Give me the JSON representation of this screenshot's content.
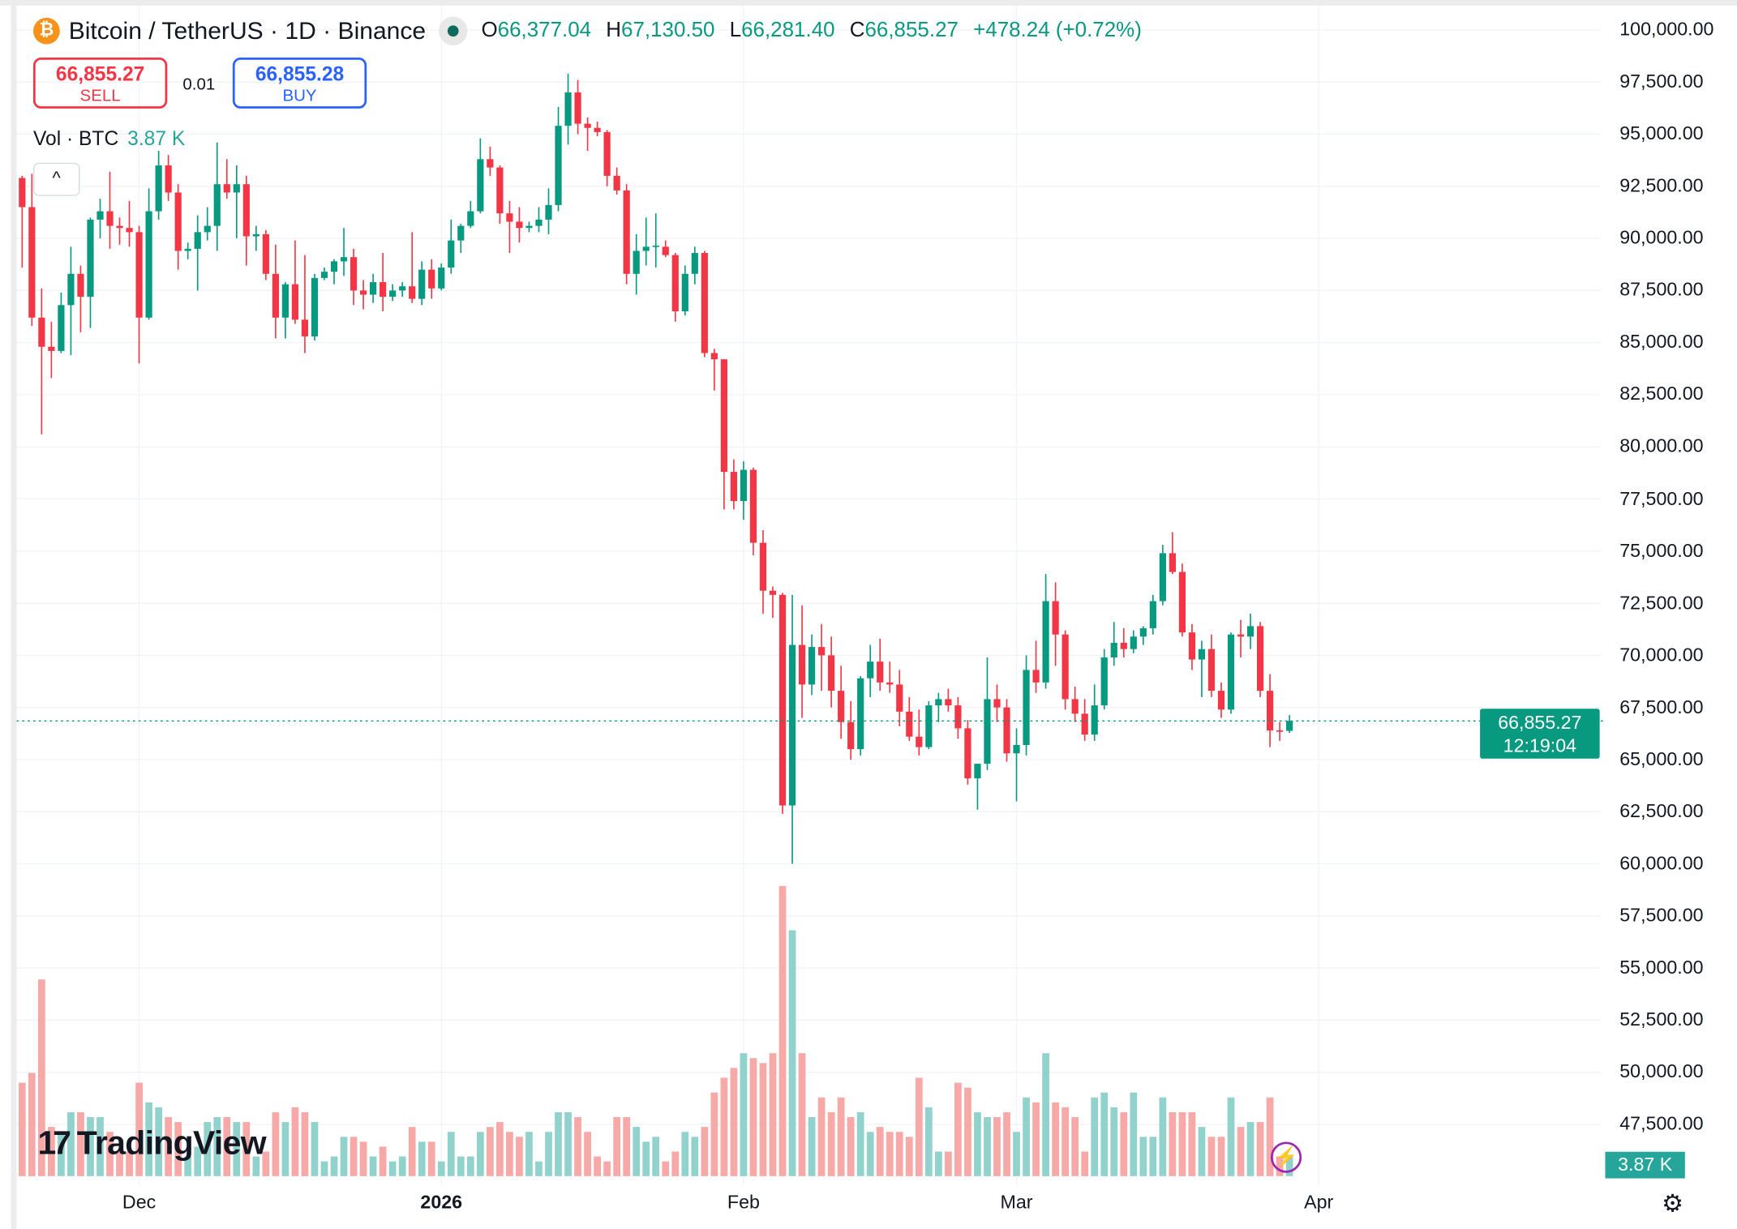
{
  "header": {
    "symbol_icon": "bitcoin-icon",
    "title": "Bitcoin / TetherUS · 1D · Binance",
    "market_status": "open",
    "open_label": "O",
    "open": "66,377.04",
    "high_label": "H",
    "high": "67,130.50",
    "low_label": "L",
    "low": "66,281.40",
    "close_label": "C",
    "close": "66,855.27",
    "change": "+478.24 (+0.72%)"
  },
  "trade": {
    "sell_price": "66,855.27",
    "sell_label": "SELL",
    "spread": "0.01",
    "buy_price": "66,855.28",
    "buy_label": "BUY"
  },
  "volume_legend": {
    "label": "Vol · BTC",
    "value": "3.87 K"
  },
  "collapse_icon": "chevron-up-icon",
  "collapse_glyph": "^",
  "price_axis": [
    "100,000.00",
    "97,500.00",
    "95,000.00",
    "92,500.00",
    "90,000.00",
    "87,500.00",
    "85,000.00",
    "82,500.00",
    "80,000.00",
    "77,500.00",
    "75,000.00",
    "72,500.00",
    "70,000.00",
    "67,500.00",
    "65,000.00",
    "62,500.00",
    "60,000.00",
    "57,500.00",
    "55,000.00",
    "52,500.00",
    "50,000.00",
    "47,500.00"
  ],
  "current_price": {
    "price": "66,855.27",
    "countdown": "12:19:04"
  },
  "current_volume": "3.87 K",
  "time_axis": [
    {
      "label": "Dec",
      "date": "2025-12-01",
      "bold": false
    },
    {
      "label": "2026",
      "date": "2026-01-01",
      "bold": true
    },
    {
      "label": "Feb",
      "date": "2026-02-01",
      "bold": false
    },
    {
      "label": "Mar",
      "date": "2026-03-01",
      "bold": false
    },
    {
      "label": "Apr",
      "date": "2026-04-01",
      "bold": false
    }
  ],
  "brand": "TradingView",
  "colors": {
    "up": "#089981",
    "down": "#f23645",
    "up_volume": "#92d2cc",
    "down_volume": "#f7a9a7",
    "sell": "#f23645",
    "buy": "#2962ff",
    "bitcoin": "#f7931a"
  },
  "icons": {
    "bolt": "lightning-icon",
    "settings": "settings-icon"
  },
  "chart_data": {
    "type": "candlestick",
    "title": "Bitcoin / TetherUS · 1D · Binance",
    "ylim": [
      45000,
      100000
    ],
    "price_unit": "USDT",
    "volume_unit": "K BTC",
    "grid": true,
    "columns": [
      "date",
      "open",
      "high",
      "low",
      "close",
      "volume"
    ],
    "candles": [
      [
        "2025-11-19",
        92900,
        93000,
        88600,
        91500,
        19
      ],
      [
        "2025-11-20",
        91500,
        93100,
        85800,
        86200,
        21
      ],
      [
        "2025-11-21",
        86200,
        87600,
        80600,
        84800,
        40
      ],
      [
        "2025-11-22",
        84800,
        86000,
        83300,
        84600,
        10
      ],
      [
        "2025-11-23",
        84600,
        87400,
        84500,
        86800,
        9
      ],
      [
        "2025-11-24",
        86800,
        89600,
        84400,
        88300,
        13
      ],
      [
        "2025-11-25",
        88300,
        88700,
        85500,
        87200,
        13
      ],
      [
        "2025-11-26",
        87200,
        91000,
        85700,
        90900,
        12
      ],
      [
        "2025-11-27",
        90900,
        91900,
        90000,
        91300,
        12
      ],
      [
        "2025-11-28",
        91300,
        93200,
        89500,
        90600,
        9
      ],
      [
        "2025-11-29",
        90600,
        91000,
        89700,
        90500,
        5
      ],
      [
        "2025-11-30",
        90500,
        91800,
        89600,
        90300,
        5
      ],
      [
        "2025-12-01",
        90300,
        90600,
        84000,
        86200,
        19
      ],
      [
        "2025-12-02",
        86200,
        92400,
        86100,
        91300,
        15
      ],
      [
        "2025-12-03",
        91300,
        94200,
        90900,
        93500,
        14
      ],
      [
        "2025-12-04",
        93500,
        94000,
        91800,
        92200,
        12
      ],
      [
        "2025-12-05",
        92200,
        92600,
        88500,
        89400,
        11
      ],
      [
        "2025-12-06",
        89400,
        89800,
        89000,
        89500,
        4
      ],
      [
        "2025-12-07",
        89500,
        91100,
        87500,
        90300,
        6
      ],
      [
        "2025-12-08",
        90300,
        91500,
        89900,
        90600,
        11
      ],
      [
        "2025-12-09",
        90600,
        94600,
        89400,
        92600,
        12
      ],
      [
        "2025-12-10",
        92600,
        93800,
        91900,
        92200,
        12
      ],
      [
        "2025-12-11",
        92200,
        93500,
        90000,
        92600,
        11
      ],
      [
        "2025-12-12",
        92600,
        93000,
        88700,
        90100,
        11
      ],
      [
        "2025-12-13",
        90100,
        90600,
        89400,
        90200,
        4
      ],
      [
        "2025-12-14",
        90200,
        90400,
        88000,
        88300,
        5
      ],
      [
        "2025-12-15",
        88300,
        89700,
        85200,
        86200,
        13
      ],
      [
        "2025-12-16",
        86200,
        87900,
        85200,
        87800,
        11
      ],
      [
        "2025-12-17",
        87800,
        89900,
        85900,
        86100,
        14
      ],
      [
        "2025-12-18",
        86100,
        89200,
        84500,
        85300,
        13
      ],
      [
        "2025-12-19",
        85300,
        88300,
        85100,
        88100,
        11
      ],
      [
        "2025-12-20",
        88100,
        88600,
        88000,
        88400,
        3
      ],
      [
        "2025-12-21",
        88400,
        89000,
        87800,
        88900,
        4
      ],
      [
        "2025-12-22",
        88900,
        90500,
        88200,
        89100,
        8
      ],
      [
        "2025-12-23",
        89100,
        89500,
        86800,
        87500,
        8
      ],
      [
        "2025-12-24",
        87500,
        88000,
        86600,
        87300,
        7
      ],
      [
        "2025-12-25",
        87300,
        88300,
        86900,
        87900,
        4
      ],
      [
        "2025-12-26",
        87900,
        89300,
        86500,
        87200,
        6
      ],
      [
        "2025-12-27",
        87200,
        87800,
        87000,
        87500,
        3
      ],
      [
        "2025-12-28",
        87500,
        87900,
        87200,
        87700,
        4
      ],
      [
        "2025-12-29",
        87700,
        90300,
        86900,
        87100,
        10
      ],
      [
        "2025-12-30",
        87100,
        88900,
        86800,
        88500,
        7
      ],
      [
        "2025-12-31",
        88500,
        89000,
        87100,
        87600,
        7
      ],
      [
        "2026-01-01",
        87600,
        88800,
        87500,
        88600,
        3
      ],
      [
        "2026-01-02",
        88600,
        90900,
        88300,
        89900,
        9
      ],
      [
        "2026-01-03",
        89900,
        90700,
        89300,
        90600,
        4
      ],
      [
        "2026-01-04",
        90600,
        91800,
        90500,
        91300,
        4
      ],
      [
        "2026-01-05",
        91300,
        94800,
        91200,
        93800,
        9
      ],
      [
        "2026-01-06",
        93800,
        94400,
        93000,
        93400,
        10
      ],
      [
        "2026-01-07",
        93400,
        93500,
        90700,
        91200,
        11
      ],
      [
        "2026-01-08",
        91200,
        91800,
        89300,
        90800,
        9
      ],
      [
        "2026-01-09",
        90800,
        91500,
        89800,
        90500,
        8
      ],
      [
        "2026-01-10",
        90500,
        90800,
        90300,
        90600,
        9
      ],
      [
        "2026-01-11",
        90600,
        91500,
        90300,
        90900,
        3
      ],
      [
        "2026-01-12",
        90900,
        92400,
        90200,
        91600,
        9
      ],
      [
        "2026-01-13",
        91600,
        96300,
        91300,
        95400,
        13
      ],
      [
        "2026-01-14",
        95400,
        97900,
        94500,
        97000,
        13
      ],
      [
        "2026-01-15",
        97000,
        97600,
        95000,
        95500,
        12
      ],
      [
        "2026-01-16",
        95500,
        95800,
        94200,
        95300,
        9
      ],
      [
        "2026-01-17",
        95300,
        95600,
        94900,
        95100,
        4
      ],
      [
        "2026-01-18",
        95100,
        95200,
        92500,
        93000,
        3
      ],
      [
        "2026-01-19",
        93000,
        93400,
        92100,
        92300,
        12
      ],
      [
        "2026-01-20",
        92300,
        92600,
        87800,
        88300,
        12
      ],
      [
        "2026-01-21",
        88300,
        90200,
        87300,
        89400,
        10
      ],
      [
        "2026-01-22",
        89400,
        91000,
        88700,
        89600,
        7
      ],
      [
        "2026-01-23",
        89600,
        91200,
        88600,
        89650,
        8
      ],
      [
        "2026-01-24",
        89600,
        89900,
        89100,
        89200,
        3
      ],
      [
        "2026-01-25",
        89200,
        89300,
        86000,
        86500,
        5
      ],
      [
        "2026-01-26",
        86500,
        88700,
        86300,
        88300,
        9
      ],
      [
        "2026-01-27",
        88300,
        89600,
        87800,
        89300,
        8
      ],
      [
        "2026-01-28",
        89300,
        89400,
        84300,
        84500,
        10
      ],
      [
        "2026-01-29",
        84500,
        84700,
        82700,
        84200,
        17
      ],
      [
        "2026-01-30",
        84200,
        84200,
        77000,
        78800,
        20
      ],
      [
        "2026-01-31",
        78800,
        79400,
        77000,
        77400,
        22
      ],
      [
        "2026-02-01",
        77400,
        79300,
        76500,
        78900,
        25
      ],
      [
        "2026-02-02",
        78900,
        79000,
        74800,
        75400,
        24
      ],
      [
        "2026-02-03",
        75400,
        76000,
        72000,
        73100,
        23
      ],
      [
        "2026-02-04",
        73100,
        73300,
        71800,
        72900,
        25
      ],
      [
        "2026-02-05",
        72900,
        73000,
        62400,
        62800,
        59
      ],
      [
        "2026-02-06",
        62800,
        72900,
        60000,
        70500,
        50
      ],
      [
        "2026-02-07",
        70500,
        72400,
        67000,
        68600,
        25
      ],
      [
        "2026-02-08",
        68600,
        71000,
        68100,
        70400,
        12
      ],
      [
        "2026-02-09",
        70400,
        71500,
        68300,
        70000,
        16
      ],
      [
        "2026-02-10",
        70000,
        70900,
        67500,
        68300,
        13
      ],
      [
        "2026-02-11",
        68300,
        69500,
        66000,
        66800,
        16
      ],
      [
        "2026-02-12",
        66800,
        67800,
        65000,
        65500,
        12
      ],
      [
        "2026-02-13",
        65500,
        69000,
        65200,
        68900,
        13
      ],
      [
        "2026-02-14",
        68900,
        70500,
        68000,
        69700,
        9
      ],
      [
        "2026-02-15",
        69700,
        70800,
        68300,
        68700,
        10
      ],
      [
        "2026-02-16",
        68700,
        69700,
        68200,
        68600,
        9
      ],
      [
        "2026-02-17",
        68600,
        69300,
        66600,
        67300,
        9
      ],
      [
        "2026-02-18",
        67300,
        68000,
        65900,
        66100,
        8
      ],
      [
        "2026-02-19",
        66100,
        67400,
        65200,
        65600,
        20
      ],
      [
        "2026-02-20",
        65600,
        67800,
        65500,
        67600,
        14
      ],
      [
        "2026-02-21",
        67600,
        68200,
        66800,
        67900,
        5
      ],
      [
        "2026-02-22",
        67900,
        68400,
        67300,
        67600,
        5
      ],
      [
        "2026-02-23",
        67600,
        68000,
        66000,
        66500,
        19
      ],
      [
        "2026-02-24",
        66500,
        66900,
        63800,
        64100,
        18
      ],
      [
        "2026-02-25",
        64100,
        64700,
        62600,
        64800,
        13
      ],
      [
        "2026-02-26",
        64800,
        69900,
        64500,
        67900,
        12
      ],
      [
        "2026-02-27",
        67900,
        68600,
        66800,
        67500,
        12
      ],
      [
        "2026-02-28",
        67500,
        67900,
        64900,
        65300,
        13
      ],
      [
        "2026-03-01",
        65300,
        66500,
        63000,
        65700,
        9
      ],
      [
        "2026-03-02",
        65700,
        70000,
        65200,
        69300,
        16
      ],
      [
        "2026-03-03",
        69300,
        70700,
        68200,
        68700,
        15
      ],
      [
        "2026-03-04",
        68700,
        73900,
        68400,
        72600,
        25
      ],
      [
        "2026-03-05",
        72600,
        73500,
        69500,
        71000,
        15
      ],
      [
        "2026-03-06",
        71000,
        71200,
        67400,
        67900,
        14
      ],
      [
        "2026-03-07",
        67900,
        68500,
        66800,
        67200,
        12
      ],
      [
        "2026-03-08",
        67200,
        67900,
        65900,
        66200,
        5
      ],
      [
        "2026-03-09",
        66200,
        68600,
        65900,
        67600,
        16
      ],
      [
        "2026-03-10",
        67600,
        70300,
        67400,
        69900,
        17
      ],
      [
        "2026-03-11",
        69900,
        71600,
        69500,
        70600,
        14
      ],
      [
        "2026-03-12",
        70600,
        71300,
        69900,
        70300,
        13
      ],
      [
        "2026-03-13",
        70300,
        71200,
        70100,
        70900,
        17
      ],
      [
        "2026-03-14",
        70900,
        71400,
        70500,
        71300,
        8
      ],
      [
        "2026-03-15",
        71300,
        72900,
        71000,
        72600,
        8
      ],
      [
        "2026-03-16",
        72600,
        75300,
        72400,
        74900,
        16
      ],
      [
        "2026-03-17",
        74900,
        75900,
        73900,
        74000,
        13
      ],
      [
        "2026-03-18",
        74000,
        74400,
        70900,
        71100,
        13
      ],
      [
        "2026-03-19",
        71100,
        71500,
        69300,
        69800,
        13
      ],
      [
        "2026-03-20",
        69800,
        70700,
        68000,
        70300,
        10
      ],
      [
        "2026-03-21",
        70300,
        71000,
        68000,
        68300,
        8
      ],
      [
        "2026-03-22",
        68300,
        68700,
        67000,
        67400,
        8
      ],
      [
        "2026-03-23",
        67400,
        71100,
        67200,
        71000,
        16
      ],
      [
        "2026-03-24",
        71000,
        71700,
        69900,
        70900,
        10
      ],
      [
        "2026-03-25",
        70900,
        72000,
        70300,
        71400,
        11
      ],
      [
        "2026-03-26",
        71400,
        71600,
        68000,
        68300,
        11
      ],
      [
        "2026-03-27",
        68300,
        69100,
        65600,
        66400,
        16
      ],
      [
        "2026-03-28",
        66400,
        66800,
        65900,
        66380,
        4
      ],
      [
        "2026-03-29",
        66377.04,
        67130.5,
        66281.4,
        66855.27,
        3.87
      ]
    ]
  }
}
